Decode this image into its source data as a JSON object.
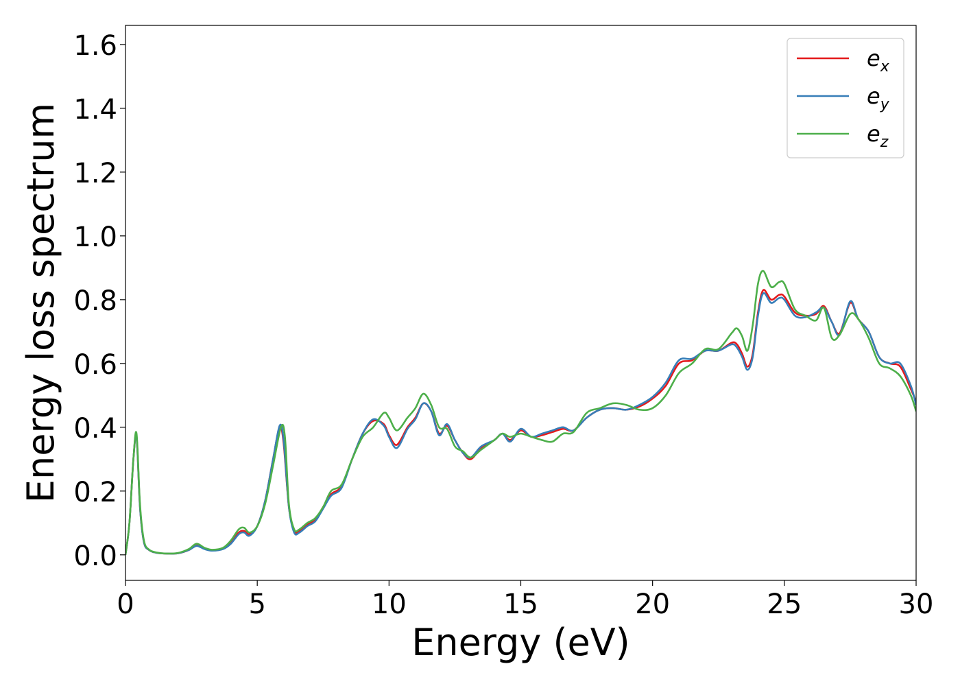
{
  "chart_data": {
    "type": "line",
    "xlabel": "Energy (eV)",
    "ylabel": "Energy loss spectrum",
    "xlim": [
      0,
      30
    ],
    "ylim": [
      -0.08,
      1.66
    ],
    "xticks": [
      0,
      5,
      10,
      15,
      20,
      25,
      30
    ],
    "xtick_labels": [
      "0",
      "5",
      "10",
      "15",
      "20",
      "25",
      "30"
    ],
    "yticks": [
      0.0,
      0.2,
      0.4,
      0.6,
      0.8,
      1.0,
      1.2,
      1.4,
      1.6
    ],
    "ytick_labels": [
      "0.0",
      "0.2",
      "0.4",
      "0.6",
      "0.8",
      "1.0",
      "1.2",
      "1.4",
      "1.6"
    ],
    "grid": false,
    "legend_position": "top-right",
    "legend": [
      {
        "base": "e",
        "sub": "x",
        "color": "#e41a1c"
      },
      {
        "base": "e",
        "sub": "y",
        "color": "#377eb8"
      },
      {
        "base": "e",
        "sub": "z",
        "color": "#4daf4a"
      }
    ],
    "series": [
      {
        "color": "#e41a1c",
        "x": [
          0,
          0.15,
          0.3,
          0.42,
          0.55,
          0.7,
          0.9,
          1.2,
          1.6,
          2.0,
          2.4,
          2.7,
          3.0,
          3.3,
          3.7,
          4.0,
          4.3,
          4.5,
          4.7,
          5.0,
          5.3,
          5.6,
          5.85,
          6.0,
          6.2,
          6.4,
          6.6,
          6.9,
          7.2,
          7.5,
          7.8,
          8.2,
          8.6,
          9.0,
          9.4,
          9.8,
          10.0,
          10.3,
          10.7,
          11.0,
          11.3,
          11.6,
          11.9,
          12.2,
          12.5,
          12.8,
          13.1,
          13.5,
          14.0,
          14.3,
          14.6,
          15.0,
          15.4,
          15.8,
          16.2,
          16.6,
          17.0,
          17.5,
          18.0,
          18.5,
          19.0,
          19.5,
          20.0,
          20.5,
          21.0,
          21.5,
          22.0,
          22.5,
          23.0,
          23.2,
          23.4,
          23.6,
          23.8,
          24.0,
          24.2,
          24.5,
          24.8,
          25.0,
          25.4,
          25.8,
          26.2,
          26.5,
          26.8,
          27.1,
          27.5,
          27.8,
          28.2,
          28.6,
          29.0,
          29.4,
          29.8,
          30.0
        ],
        "y": [
          0.0,
          0.1,
          0.3,
          0.37,
          0.15,
          0.04,
          0.015,
          0.006,
          0.004,
          0.005,
          0.015,
          0.03,
          0.02,
          0.015,
          0.02,
          0.04,
          0.07,
          0.075,
          0.065,
          0.09,
          0.17,
          0.3,
          0.4,
          0.35,
          0.15,
          0.075,
          0.075,
          0.095,
          0.11,
          0.15,
          0.19,
          0.215,
          0.3,
          0.38,
          0.42,
          0.41,
          0.375,
          0.345,
          0.4,
          0.43,
          0.475,
          0.45,
          0.38,
          0.405,
          0.36,
          0.32,
          0.3,
          0.335,
          0.36,
          0.38,
          0.36,
          0.39,
          0.37,
          0.375,
          0.385,
          0.395,
          0.39,
          0.43,
          0.455,
          0.46,
          0.455,
          0.465,
          0.49,
          0.53,
          0.6,
          0.61,
          0.64,
          0.64,
          0.665,
          0.66,
          0.63,
          0.59,
          0.63,
          0.76,
          0.83,
          0.8,
          0.815,
          0.81,
          0.76,
          0.75,
          0.755,
          0.78,
          0.73,
          0.695,
          0.79,
          0.74,
          0.7,
          0.62,
          0.6,
          0.59,
          0.52,
          0.48
        ]
      },
      {
        "color": "#377eb8",
        "x": [
          0,
          0.15,
          0.3,
          0.42,
          0.55,
          0.7,
          0.9,
          1.2,
          1.6,
          2.0,
          2.4,
          2.7,
          3.0,
          3.3,
          3.7,
          4.0,
          4.3,
          4.5,
          4.7,
          5.0,
          5.3,
          5.6,
          5.85,
          6.0,
          6.2,
          6.4,
          6.6,
          6.9,
          7.2,
          7.5,
          7.8,
          8.2,
          8.6,
          9.0,
          9.4,
          9.8,
          10.0,
          10.3,
          10.7,
          11.0,
          11.3,
          11.6,
          11.9,
          12.2,
          12.5,
          12.8,
          13.1,
          13.5,
          14.0,
          14.3,
          14.6,
          15.0,
          15.4,
          15.8,
          16.2,
          16.6,
          17.0,
          17.5,
          18.0,
          18.5,
          19.0,
          19.5,
          20.0,
          20.5,
          21.0,
          21.5,
          22.0,
          22.5,
          23.0,
          23.2,
          23.4,
          23.6,
          23.8,
          24.0,
          24.2,
          24.5,
          24.8,
          25.0,
          25.4,
          25.8,
          26.2,
          26.5,
          26.8,
          27.1,
          27.5,
          27.8,
          28.2,
          28.6,
          29.0,
          29.4,
          29.8,
          30.0
        ],
        "y": [
          0.0,
          0.1,
          0.3,
          0.37,
          0.15,
          0.04,
          0.015,
          0.006,
          0.004,
          0.005,
          0.015,
          0.028,
          0.018,
          0.013,
          0.018,
          0.035,
          0.065,
          0.07,
          0.06,
          0.09,
          0.17,
          0.3,
          0.405,
          0.36,
          0.15,
          0.07,
          0.07,
          0.09,
          0.105,
          0.145,
          0.185,
          0.21,
          0.3,
          0.38,
          0.425,
          0.405,
          0.37,
          0.335,
          0.395,
          0.425,
          0.475,
          0.45,
          0.375,
          0.41,
          0.36,
          0.32,
          0.305,
          0.34,
          0.36,
          0.38,
          0.355,
          0.395,
          0.37,
          0.38,
          0.39,
          0.4,
          0.39,
          0.43,
          0.455,
          0.46,
          0.455,
          0.47,
          0.495,
          0.54,
          0.61,
          0.615,
          0.64,
          0.64,
          0.66,
          0.65,
          0.62,
          0.58,
          0.62,
          0.75,
          0.82,
          0.79,
          0.805,
          0.8,
          0.75,
          0.745,
          0.76,
          0.775,
          0.73,
          0.69,
          0.795,
          0.74,
          0.7,
          0.62,
          0.6,
          0.6,
          0.53,
          0.47
        ]
      },
      {
        "color": "#4daf4a",
        "x": [
          0,
          0.15,
          0.3,
          0.42,
          0.55,
          0.7,
          0.9,
          1.2,
          1.6,
          2.0,
          2.4,
          2.7,
          3.0,
          3.3,
          3.7,
          4.0,
          4.3,
          4.5,
          4.7,
          5.0,
          5.3,
          5.6,
          5.9,
          6.05,
          6.2,
          6.4,
          6.6,
          6.9,
          7.2,
          7.5,
          7.8,
          8.2,
          8.6,
          9.0,
          9.4,
          9.8,
          10.0,
          10.3,
          10.7,
          11.0,
          11.3,
          11.6,
          11.9,
          12.2,
          12.5,
          12.8,
          13.1,
          13.5,
          14.0,
          14.3,
          14.6,
          15.0,
          15.4,
          15.8,
          16.2,
          16.6,
          17.0,
          17.5,
          18.0,
          18.5,
          19.0,
          19.5,
          20.0,
          20.5,
          21.0,
          21.5,
          22.0,
          22.5,
          23.0,
          23.2,
          23.4,
          23.6,
          23.8,
          24.0,
          24.2,
          24.5,
          24.8,
          25.0,
          25.4,
          25.8,
          26.2,
          26.5,
          26.8,
          27.1,
          27.5,
          27.8,
          28.2,
          28.6,
          29.0,
          29.4,
          29.8,
          30.0
        ],
        "y": [
          0.0,
          0.1,
          0.3,
          0.38,
          0.16,
          0.045,
          0.016,
          0.007,
          0.004,
          0.006,
          0.018,
          0.035,
          0.022,
          0.016,
          0.022,
          0.045,
          0.08,
          0.085,
          0.07,
          0.09,
          0.16,
          0.28,
          0.4,
          0.37,
          0.16,
          0.08,
          0.08,
          0.1,
          0.115,
          0.15,
          0.2,
          0.22,
          0.3,
          0.37,
          0.4,
          0.445,
          0.43,
          0.39,
          0.43,
          0.46,
          0.505,
          0.47,
          0.4,
          0.395,
          0.34,
          0.325,
          0.305,
          0.33,
          0.36,
          0.38,
          0.37,
          0.38,
          0.37,
          0.36,
          0.355,
          0.38,
          0.385,
          0.445,
          0.46,
          0.475,
          0.47,
          0.455,
          0.46,
          0.5,
          0.57,
          0.6,
          0.645,
          0.645,
          0.695,
          0.71,
          0.685,
          0.64,
          0.72,
          0.85,
          0.89,
          0.84,
          0.855,
          0.85,
          0.77,
          0.75,
          0.735,
          0.775,
          0.68,
          0.69,
          0.755,
          0.74,
          0.68,
          0.6,
          0.585,
          0.56,
          0.5,
          0.45
        ]
      }
    ]
  }
}
